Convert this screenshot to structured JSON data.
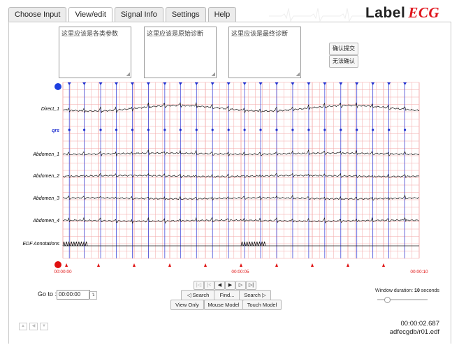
{
  "tabs": [
    "Choose Input",
    "View/edit",
    "Signal Info",
    "Settings",
    "Help"
  ],
  "logo": {
    "text": "Label",
    "accent": "ECG"
  },
  "notes": {
    "params": "这里应该是各类参数",
    "original": "这里应该是原始诊断",
    "final": "这里应该是最终诊断"
  },
  "buttons": {
    "confirm": "确认提交",
    "cannot": "无法确认"
  },
  "chart_data": {
    "type": "line",
    "channels": [
      "Direct_1",
      "qrs",
      "Abdomen_1",
      "Abdomen_2",
      "Abdomen_3",
      "Abdomen_4",
      "EDF Annotations"
    ],
    "time_labels": [
      "00:00:00",
      "00:00:05",
      "00:00:10"
    ],
    "xlim": [
      0,
      10
    ],
    "x_unit": "s",
    "qrs_times": [
      0.18,
      0.6,
      1.06,
      1.5,
      1.95,
      2.4,
      2.86,
      3.3,
      3.75,
      4.2,
      4.65,
      5.1,
      5.55,
      6.0,
      6.45,
      6.9,
      7.35,
      7.8,
      8.25,
      8.7,
      9.15,
      9.6
    ],
    "bottom_markers": [
      0.1,
      1.0,
      2.0,
      3.0,
      4.0,
      5.0,
      6.0,
      7.0,
      8.0,
      9.0
    ],
    "annotation_bursts": [
      [
        0.0,
        0.7
      ],
      [
        5.0,
        5.7
      ]
    ],
    "grid": true,
    "colors": {
      "grid": "#f3a7a7",
      "qrs_line": "#2a33d6",
      "marker_top": "#1f2fd0",
      "marker_bottom": "#e01010",
      "trace": "#1a1a1a"
    }
  },
  "nav": {
    "first": "|◁",
    "prev_page": "|<",
    "prev": "◀",
    "next": "▶",
    "next_page": "▷",
    "last": "▷|",
    "search_back": "◁ Search",
    "find": "Find...",
    "search_fwd": "Search ▷",
    "view_only": "View Only",
    "mouse_model": "Mouse Model",
    "touch_model": "Touch Model"
  },
  "goto": {
    "label": "Go to :",
    "value": "00:00:00"
  },
  "window_duration": {
    "prefix": "Window duration:",
    "value": "10",
    "unit": "seconds"
  },
  "side_buttons": [
    "▲",
    "◀",
    "▼"
  ],
  "cursor_time": "00:00:02.687",
  "file": "adfecgdb/r01.edf"
}
